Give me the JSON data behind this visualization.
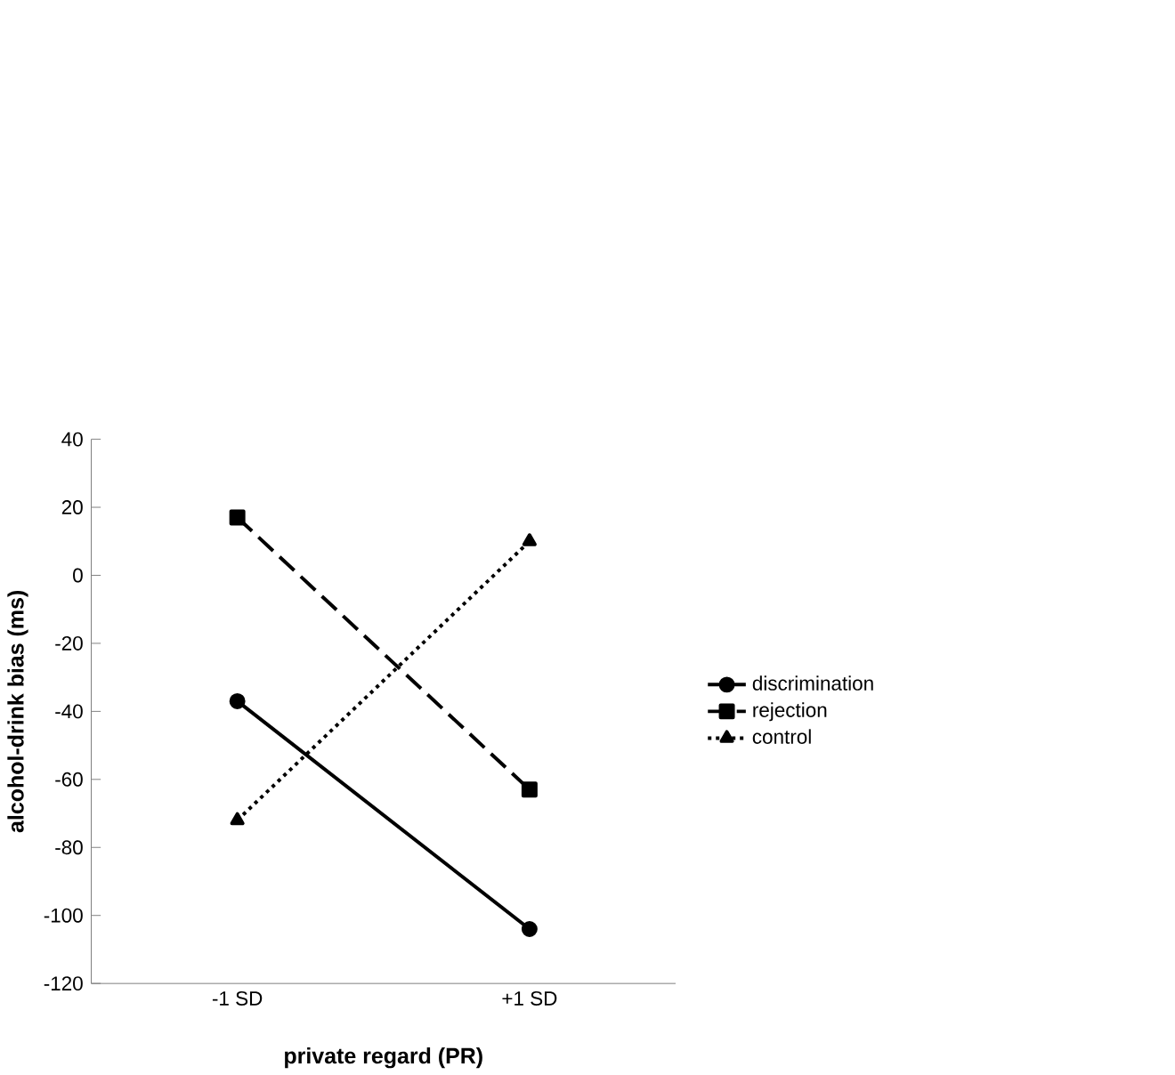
{
  "chart_data": {
    "type": "line",
    "xlabel": "private regard (PR)",
    "ylabel": "alcohol-drink bias (ms)",
    "categories": [
      "-1 SD",
      "+1 SD"
    ],
    "ylim": [
      -120,
      40
    ],
    "yticks": [
      -120,
      -100,
      -80,
      -60,
      -40,
      -20,
      0,
      20,
      40
    ],
    "grid": false,
    "legend": "right",
    "series": [
      {
        "name": "discrimination",
        "color": "#000000",
        "values": [
          -37,
          -104
        ],
        "marker": "circle",
        "line_style": "solid"
      },
      {
        "name": "rejection",
        "color": "#000000",
        "values": [
          17,
          -63
        ],
        "marker": "square",
        "line_style": "dashed"
      },
      {
        "name": "control",
        "color": "#000000",
        "values": [
          -72,
          10
        ],
        "marker": "triangle",
        "line_style": "dotted"
      }
    ]
  }
}
